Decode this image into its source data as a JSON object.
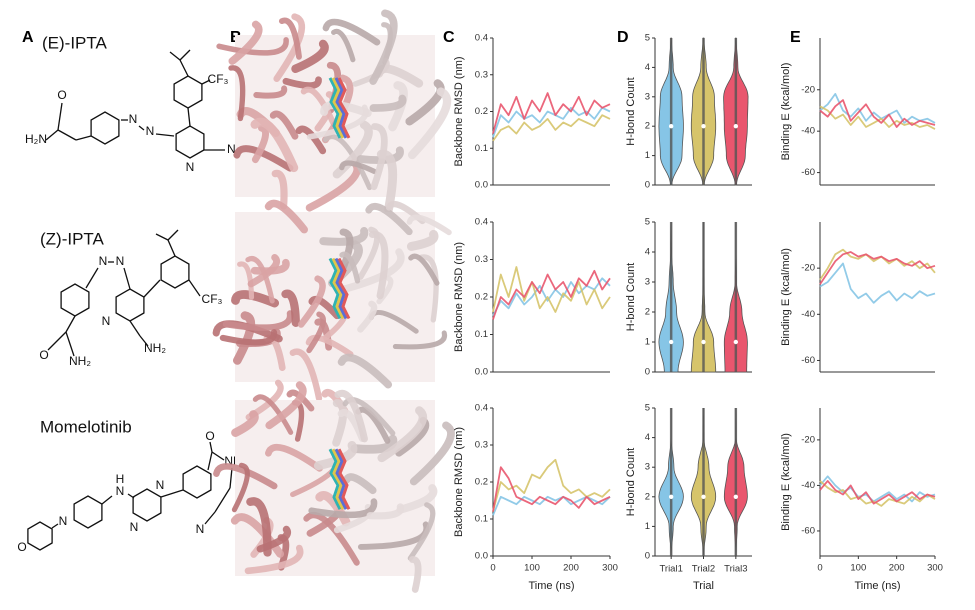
{
  "panel_labels": [
    "A",
    "B",
    "C",
    "D",
    "E"
  ],
  "molecules": [
    {
      "name": "(E)-IPTA",
      "atoms": [
        "H₂N",
        "O",
        "N",
        "N",
        "CF₃",
        "N",
        "NH₂"
      ]
    },
    {
      "name": "(Z)-IPTA",
      "atoms": [
        "N",
        "N",
        "CF₃",
        "N",
        "NH₂",
        "O",
        "NH₂"
      ]
    },
    {
      "name": "Momelotinib",
      "atoms": [
        "O",
        "N",
        "N",
        "H",
        "N",
        "N",
        "O",
        "NH",
        "N"
      ]
    }
  ],
  "chart_data": [
    {
      "type": "line",
      "ylabel": "Backbone RMSD (nm)",
      "xlim": [
        0,
        300
      ],
      "ylim": [
        0,
        0.4
      ],
      "yticks": [
        {
          "value": 0,
          "label": "0.0"
        },
        0.1,
        0.2,
        0.3,
        0.4
      ],
      "x": [
        0,
        20,
        40,
        60,
        80,
        100,
        120,
        140,
        160,
        180,
        200,
        220,
        240,
        260,
        280,
        300
      ],
      "series": [
        {
          "color": "#86c5e6",
          "values": [
            0.13,
            0.19,
            0.17,
            0.2,
            0.18,
            0.19,
            0.17,
            0.2,
            0.19,
            0.18,
            0.21,
            0.19,
            0.2,
            0.18,
            0.21,
            0.2
          ]
        },
        {
          "color": "#d6c46b",
          "values": [
            0.12,
            0.15,
            0.16,
            0.14,
            0.17,
            0.15,
            0.16,
            0.18,
            0.15,
            0.17,
            0.16,
            0.18,
            0.17,
            0.16,
            0.19,
            0.18
          ]
        },
        {
          "color": "#e9566e",
          "values": [
            0.14,
            0.22,
            0.19,
            0.24,
            0.18,
            0.23,
            0.2,
            0.25,
            0.19,
            0.22,
            0.2,
            0.24,
            0.19,
            0.23,
            0.21,
            0.22
          ]
        }
      ]
    },
    {
      "type": "line",
      "ylabel": "Backbone RMSD (nm)",
      "xlim": [
        0,
        300
      ],
      "ylim": [
        0,
        0.4
      ],
      "yticks": [
        {
          "value": 0,
          "label": "0.0"
        },
        0.1,
        0.2,
        0.3,
        0.4
      ],
      "x": [
        0,
        20,
        40,
        60,
        80,
        100,
        120,
        140,
        160,
        180,
        200,
        220,
        240,
        260,
        280,
        300
      ],
      "series": [
        {
          "color": "#86c5e6",
          "values": [
            0.15,
            0.19,
            0.17,
            0.21,
            0.18,
            0.2,
            0.23,
            0.19,
            0.22,
            0.2,
            0.24,
            0.21,
            0.23,
            0.22,
            0.25,
            0.23
          ]
        },
        {
          "color": "#d6c46b",
          "values": [
            0.16,
            0.26,
            0.2,
            0.28,
            0.19,
            0.24,
            0.17,
            0.2,
            0.16,
            0.21,
            0.19,
            0.24,
            0.18,
            0.22,
            0.17,
            0.2
          ]
        },
        {
          "color": "#e9566e",
          "values": [
            0.14,
            0.2,
            0.18,
            0.22,
            0.2,
            0.24,
            0.21,
            0.26,
            0.22,
            0.24,
            0.2,
            0.25,
            0.23,
            0.27,
            0.22,
            0.25
          ]
        }
      ]
    },
    {
      "type": "line",
      "ylabel": "Backbone RMSD (nm)",
      "xlabel": "Time (ns)",
      "xlim": [
        0,
        300
      ],
      "ylim": [
        0,
        0.4
      ],
      "xticks": [
        0,
        100,
        200,
        300
      ],
      "yticks": [
        {
          "value": 0,
          "label": "0.0"
        },
        0.1,
        0.2,
        0.3,
        0.4
      ],
      "x": [
        0,
        20,
        40,
        60,
        80,
        100,
        120,
        140,
        160,
        180,
        200,
        220,
        240,
        260,
        280,
        300
      ],
      "series": [
        {
          "color": "#86c5e6",
          "values": [
            0.11,
            0.16,
            0.15,
            0.14,
            0.16,
            0.15,
            0.14,
            0.16,
            0.15,
            0.16,
            0.14,
            0.15,
            0.16,
            0.15,
            0.14,
            0.16
          ]
        },
        {
          "color": "#d6c46b",
          "values": [
            0.12,
            0.2,
            0.18,
            0.19,
            0.17,
            0.22,
            0.21,
            0.24,
            0.26,
            0.19,
            0.17,
            0.18,
            0.16,
            0.17,
            0.16,
            0.18
          ]
        },
        {
          "color": "#e9566e",
          "values": [
            0.12,
            0.24,
            0.21,
            0.16,
            0.15,
            0.14,
            0.16,
            0.15,
            0.14,
            0.16,
            0.15,
            0.13,
            0.16,
            0.14,
            0.15,
            0.16
          ]
        }
      ]
    },
    {
      "type": "violin",
      "ylabel": "H-bond Count",
      "ylim": [
        0,
        5
      ],
      "yticks": [
        0,
        1,
        2,
        3,
        4,
        5
      ],
      "levels": [
        0,
        1,
        2,
        3,
        4,
        5
      ],
      "series": [
        {
          "color": "#86c5e6",
          "density": [
            0.05,
            0.8,
            0.9,
            0.8,
            0.15,
            0.02
          ],
          "median": 2
        },
        {
          "color": "#d6c46b",
          "density": [
            0.05,
            0.75,
            0.9,
            0.8,
            0.2,
            0.03
          ],
          "median": 2
        },
        {
          "color": "#e9566e",
          "density": [
            0.05,
            0.7,
            0.85,
            0.9,
            0.15,
            0.02
          ],
          "median": 2
        }
      ]
    },
    {
      "type": "violin",
      "ylabel": "H-bond Count",
      "ylim": [
        0,
        5
      ],
      "yticks": [
        0,
        1,
        2,
        3,
        4,
        5
      ],
      "levels": [
        0,
        1,
        2,
        3,
        4,
        5
      ],
      "series": [
        {
          "color": "#86c5e6",
          "density": [
            0.5,
            0.9,
            0.4,
            0.15,
            0.03,
            0
          ],
          "median": 1
        },
        {
          "color": "#d6c46b",
          "density": [
            0.9,
            0.75,
            0.1,
            0.02,
            0,
            0
          ],
          "median": 1
        },
        {
          "color": "#e9566e",
          "density": [
            0.8,
            0.85,
            0.45,
            0.05,
            0,
            0
          ],
          "median": 1
        }
      ]
    },
    {
      "type": "violin",
      "ylabel": "H-bond Count",
      "xlabel": "Trial",
      "ylim": [
        0,
        5
      ],
      "yticks": [
        0,
        1,
        2,
        3,
        4,
        5
      ],
      "categories": [
        "Trial1",
        "Trial2",
        "Trial3"
      ],
      "levels": [
        0,
        1,
        2,
        3,
        4,
        5
      ],
      "series": [
        {
          "color": "#86c5e6",
          "density": [
            0,
            0.15,
            0.9,
            0.2,
            0,
            0
          ],
          "median": 2
        },
        {
          "color": "#d6c46b",
          "density": [
            0,
            0.2,
            0.9,
            0.4,
            0.02,
            0
          ],
          "median": 2
        },
        {
          "color": "#e9566e",
          "density": [
            0,
            0.1,
            0.85,
            0.6,
            0.02,
            0
          ],
          "median": 2
        }
      ]
    },
    {
      "type": "line",
      "ylabel": "Binding E (kcal/mol)",
      "xlim": [
        0,
        300
      ],
      "ylim": [
        -66,
        5
      ],
      "yticks": [
        -60,
        -40,
        -20
      ],
      "x": [
        0,
        20,
        40,
        60,
        80,
        100,
        120,
        140,
        160,
        180,
        200,
        220,
        240,
        260,
        280,
        300
      ],
      "series": [
        {
          "color": "#86c5e6",
          "values": [
            -30,
            -27,
            -22,
            -30,
            -33,
            -29,
            -35,
            -31,
            -34,
            -32,
            -30,
            -36,
            -33,
            -35,
            -34,
            -36
          ]
        },
        {
          "color": "#d6c46b",
          "values": [
            -28,
            -30,
            -34,
            -32,
            -37,
            -33,
            -38,
            -36,
            -34,
            -38,
            -35,
            -37,
            -36,
            -38,
            -37,
            -39
          ]
        },
        {
          "color": "#e9566e",
          "values": [
            -30,
            -33,
            -28,
            -25,
            -35,
            -31,
            -27,
            -33,
            -36,
            -32,
            -38,
            -34,
            -37,
            -35,
            -36,
            -37
          ]
        }
      ]
    },
    {
      "type": "line",
      "ylabel": "Binding E (kcal/mol)",
      "xlim": [
        0,
        300
      ],
      "ylim": [
        -65,
        0
      ],
      "yticks": [
        -60,
        -40,
        -20
      ],
      "x": [
        0,
        20,
        40,
        60,
        80,
        100,
        120,
        140,
        160,
        180,
        200,
        220,
        240,
        260,
        280,
        300
      ],
      "series": [
        {
          "color": "#86c5e6",
          "values": [
            -28,
            -26,
            -22,
            -18,
            -29,
            -33,
            -31,
            -35,
            -32,
            -30,
            -34,
            -31,
            -33,
            -30,
            -32,
            -31
          ]
        },
        {
          "color": "#d6c46b",
          "values": [
            -25,
            -20,
            -14,
            -12,
            -15,
            -16,
            -14,
            -17,
            -15,
            -18,
            -16,
            -19,
            -17,
            -20,
            -18,
            -22
          ]
        },
        {
          "color": "#e9566e",
          "values": [
            -27,
            -22,
            -17,
            -14,
            -13,
            -15,
            -14,
            -16,
            -15,
            -17,
            -16,
            -18,
            -19,
            -17,
            -20,
            -19
          ]
        }
      ]
    },
    {
      "type": "line",
      "ylabel": "Binding E (kcal/mol)",
      "xlabel": "Time (ns)",
      "xlim": [
        0,
        300
      ],
      "ylim": [
        -71,
        -6
      ],
      "xticks": [
        0,
        100,
        200,
        300
      ],
      "yticks": [
        -60,
        -40,
        -20
      ],
      "x": [
        0,
        20,
        40,
        60,
        80,
        100,
        120,
        140,
        160,
        180,
        200,
        220,
        240,
        260,
        280,
        300
      ],
      "series": [
        {
          "color": "#86c5e6",
          "values": [
            -40,
            -36,
            -40,
            -43,
            -41,
            -45,
            -44,
            -47,
            -45,
            -43,
            -46,
            -44,
            -47,
            -43,
            -45,
            -44
          ]
        },
        {
          "color": "#d6c46b",
          "values": [
            -38,
            -41,
            -43,
            -42,
            -46,
            -45,
            -48,
            -47,
            -49,
            -46,
            -47,
            -48,
            -45,
            -47,
            -44,
            -46
          ]
        },
        {
          "color": "#e9566e",
          "values": [
            -42,
            -38,
            -42,
            -44,
            -40,
            -46,
            -43,
            -48,
            -46,
            -44,
            -47,
            -45,
            -43,
            -46,
            -44,
            -45
          ]
        }
      ]
    }
  ]
}
